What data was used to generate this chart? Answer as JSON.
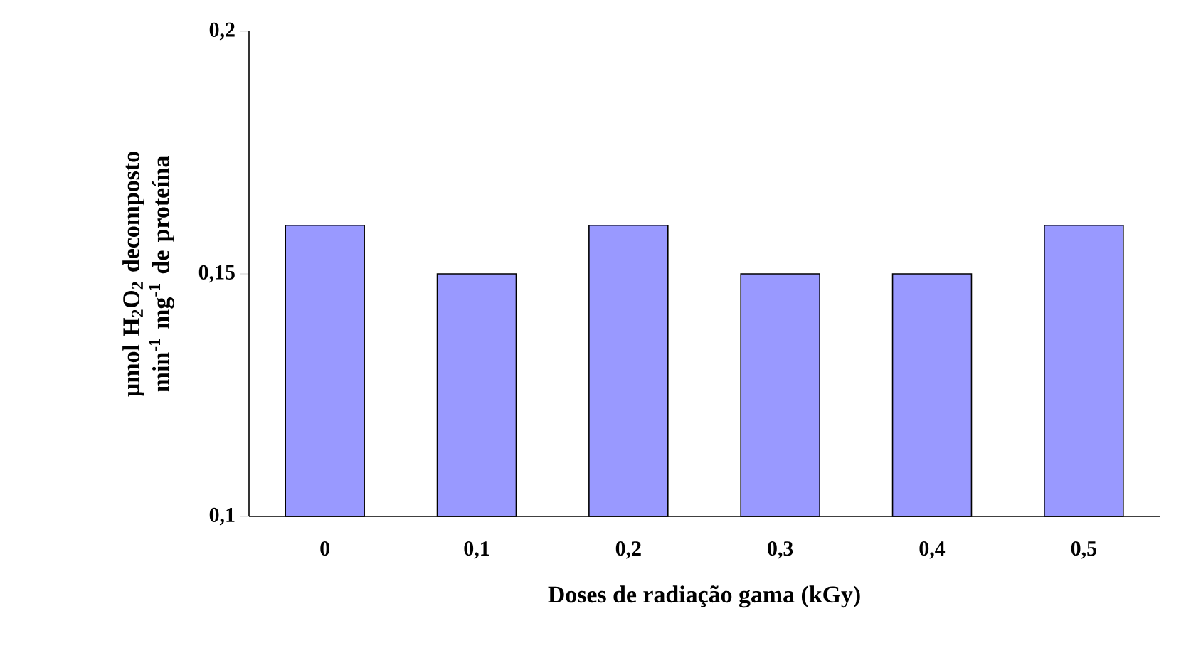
{
  "chart_data": {
    "type": "bar",
    "xlabel": "Doses de radiação gama (kGy)",
    "ylabel": "µmol H$_{2}$O$_{2}$ decomposto min$^{-1}$ mg$^{-1}$ de proteína",
    "categories": [
      "0",
      "0,1",
      "0,2",
      "0,3",
      "0,4",
      "0,5"
    ],
    "values": [
      0.16,
      0.15,
      0.16,
      0.15,
      0.15,
      0.16
    ],
    "color": "#9999ff",
    "ylim": [
      0.1,
      0.2
    ],
    "yticks": [
      {
        "value": 0.1,
        "label": "0,1"
      },
      {
        "value": 0.15,
        "label": "0,15"
      },
      {
        "value": 0.2,
        "label": "0,2"
      }
    ],
    "grid": false
  }
}
